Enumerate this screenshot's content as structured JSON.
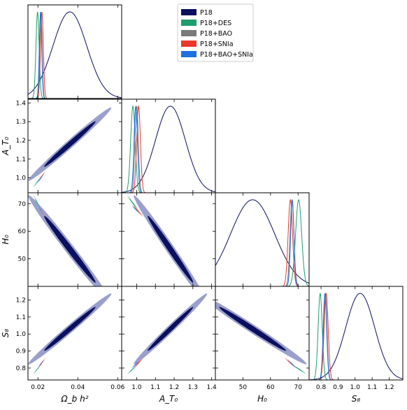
{
  "colors": {
    "P18": "#0a0f5e",
    "P18+DES": "#1e9e6e",
    "P18+BAO": "#7a7a7a",
    "P18+SNIa": "#e8392a",
    "P18+BAO+SNIa": "#1f6fe0",
    "P18_fill_outer": "#9aa0cc",
    "P18_fill_inner": "#0a0f5e"
  },
  "chart_data": {
    "type": "corner",
    "parameters": [
      {
        "key": "omb",
        "label": "Ω_b h²",
        "range": [
          0.015,
          0.062
        ],
        "ticks": [
          0.02,
          0.04,
          0.06
        ],
        "tick_labels": [
          "0.02",
          "0.04",
          "0.06"
        ]
      },
      {
        "key": "AT0",
        "label": "A_T₀",
        "range": [
          0.92,
          1.42
        ],
        "ticks": [
          1.0,
          1.1,
          1.2,
          1.3,
          1.4
        ],
        "tick_labels": [
          "1.0",
          "1.1",
          "1.2",
          "1.3",
          "1.4"
        ]
      },
      {
        "key": "H0",
        "label": "H₀",
        "range": [
          40,
          74
        ],
        "ticks": [
          50,
          60,
          70
        ],
        "tick_labels": [
          "50",
          "60",
          "70"
        ]
      },
      {
        "key": "S8",
        "label": "S₈",
        "range": [
          0.73,
          1.28
        ],
        "ticks": [
          0.8,
          0.9,
          1.0,
          1.1,
          1.2
        ],
        "tick_labels": [
          "0.8",
          "0.9",
          "1.0",
          "1.1",
          "1.2"
        ]
      }
    ],
    "axis_labels": {
      "x": [
        "Ω_b h²",
        "A_T₀",
        "H₀",
        "S₈"
      ],
      "y": [
        "",
        "A_T₀",
        "H₀",
        "S₈"
      ]
    },
    "legend": {
      "placement": "top-right",
      "entries": [
        "P18",
        "P18+DES",
        "P18+BAO",
        "P18+SNIa",
        "P18+BAO+SNIa"
      ]
    },
    "grid": false,
    "series": [
      {
        "name": "P18",
        "mean": [
          0.036,
          1.18,
          53.5,
          1.03
        ],
        "sigma": [
          0.0085,
          0.08,
          8.0,
          0.085
        ],
        "contour_style": "filled"
      },
      {
        "name": "P18+DES",
        "mean": [
          0.0198,
          0.98,
          70.2,
          0.795
        ],
        "sigma": [
          0.0008,
          0.012,
          1.1,
          0.012
        ],
        "contour_style": "filled"
      },
      {
        "name": "P18+BAO",
        "mean": [
          0.0215,
          1.0,
          67.8,
          0.825
        ],
        "sigma": [
          0.0006,
          0.009,
          0.7,
          0.01
        ],
        "contour_style": "filled"
      },
      {
        "name": "P18+SNIa",
        "mean": [
          0.022,
          1.01,
          67.2,
          0.83
        ],
        "sigma": [
          0.0007,
          0.01,
          0.8,
          0.012
        ],
        "contour_style": "filled"
      },
      {
        "name": "P18+BAO+SNIa",
        "mean": [
          0.0213,
          0.995,
          67.9,
          0.823
        ],
        "sigma": [
          0.0006,
          0.009,
          0.6,
          0.01
        ],
        "contour_style": "filled"
      }
    ],
    "correlations": {
      "omb-AT0": 0.99,
      "omb-H0": -0.99,
      "omb-S8": 0.99,
      "AT0-H0": -0.99,
      "AT0-S8": 0.99,
      "H0-S8": -0.99
    }
  }
}
